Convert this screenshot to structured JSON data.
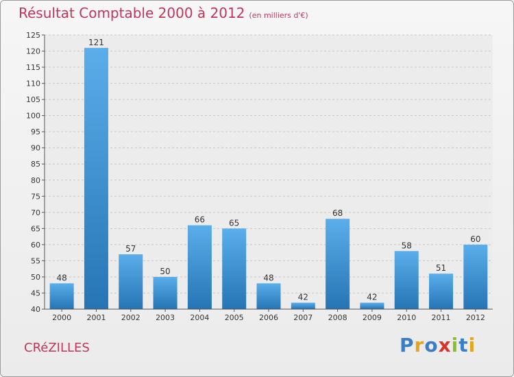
{
  "chart_data": {
    "type": "bar",
    "title": "Résultat Comptable 2000 à 2012",
    "subtitle": "(en milliers d'€)",
    "categories": [
      "2000",
      "2001",
      "2002",
      "2003",
      "2004",
      "2005",
      "2006",
      "2007",
      "2008",
      "2009",
      "2010",
      "2011",
      "2012"
    ],
    "values": [
      48,
      121,
      57,
      50,
      66,
      65,
      48,
      42,
      68,
      42,
      58,
      51,
      60
    ],
    "ylim": [
      40,
      125
    ],
    "yticks": [
      40,
      45,
      50,
      55,
      60,
      65,
      70,
      75,
      80,
      85,
      90,
      95,
      100,
      105,
      110,
      115,
      120,
      125
    ],
    "grid": true,
    "xlabel": "",
    "ylabel": ""
  },
  "commune": "CRéZILLES",
  "logo": {
    "text": "Proxiti",
    "letters": [
      {
        "ch": "P",
        "color": "#3a7fc6"
      },
      {
        "ch": "r",
        "color": "#e6a51f"
      },
      {
        "ch": "o",
        "color": "#3a7fc6"
      },
      {
        "ch": "x",
        "color": "#d9342b"
      },
      {
        "ch": "i",
        "color": "#8bbf2a"
      },
      {
        "ch": "t",
        "color": "#3a7fc6"
      },
      {
        "ch": "i",
        "color": "#e6a51f"
      }
    ]
  },
  "colors": {
    "accent": "#c0355b",
    "bar_top": "#5aaeea",
    "bar_bottom": "#2674b4"
  }
}
